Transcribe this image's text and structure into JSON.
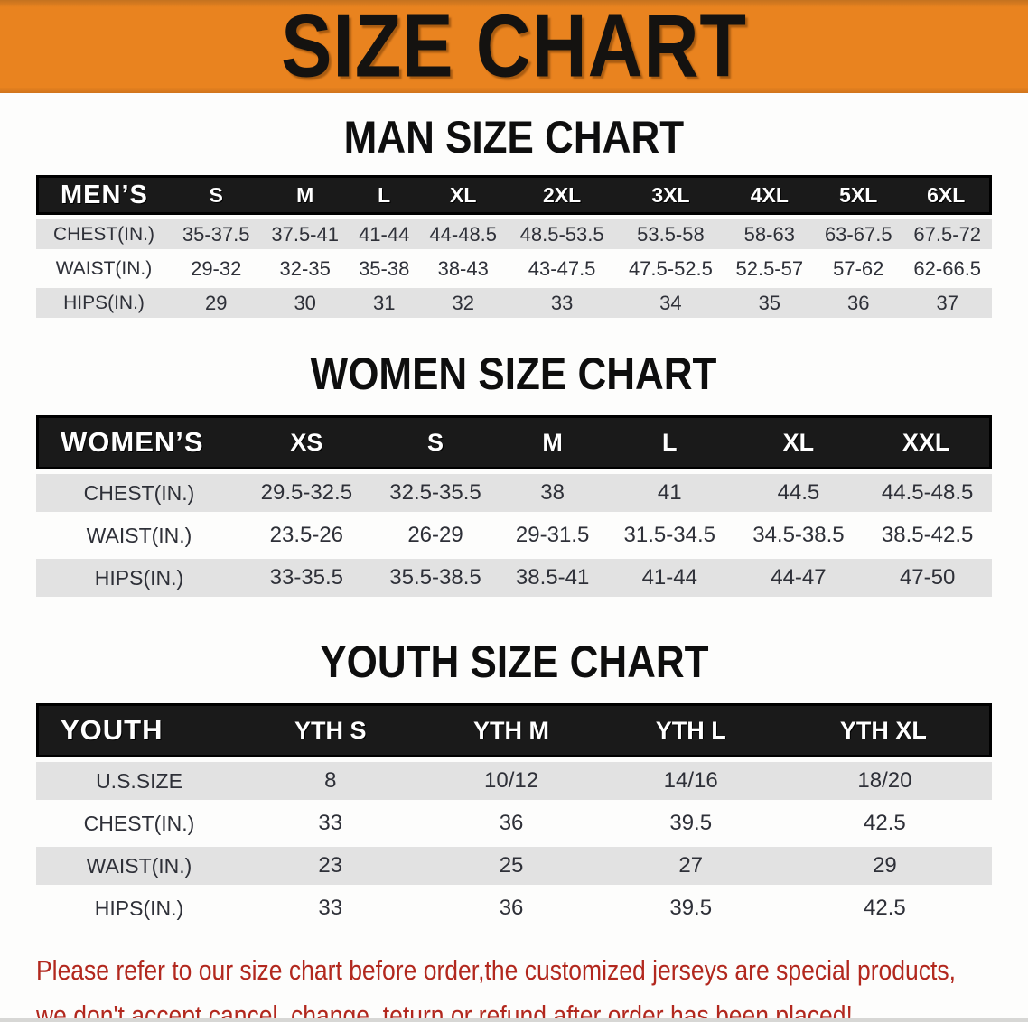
{
  "banner": {
    "title": "SIZE CHART"
  },
  "colors": {
    "banner_orange": "#E9831F",
    "banner_top_edge": "#C4721F",
    "table_header_black": "#1A1A1A",
    "stripe_gray": "#E2E2E2",
    "body_text": "#2E3038",
    "footer_red": "#B2281E"
  },
  "sections": [
    {
      "title": "MAN SIZE CHART",
      "table": {
        "header": [
          "MEN’S",
          "S",
          "M",
          "L",
          "XL",
          "2XL",
          "3XL",
          "4XL",
          "5XL",
          "6XL"
        ],
        "rows": [
          [
            "CHEST(IN.)",
            "35-37.5",
            "37.5-41",
            "41-44",
            "44-48.5",
            "48.5-53.5",
            "53.5-58",
            "58-63",
            "63-67.5",
            "67.5-72"
          ],
          [
            "WAIST(IN.)",
            "29-32",
            "32-35",
            "35-38",
            "38-43",
            "43-47.5",
            "47.5-52.5",
            "52.5-57",
            "57-62",
            "62-66.5"
          ],
          [
            "HIPS(IN.)",
            "29",
            "30",
            "31",
            "32",
            "33",
            "34",
            "35",
            "36",
            "37"
          ]
        ]
      }
    },
    {
      "title": "WOMEN SIZE CHART",
      "table": {
        "header": [
          "WOMEN’S",
          "XS",
          "S",
          "M",
          "L",
          "XL",
          "XXL"
        ],
        "rows": [
          [
            "CHEST(IN.)",
            "29.5-32.5",
            "32.5-35.5",
            "38",
            "41",
            "44.5",
            "44.5-48.5"
          ],
          [
            "WAIST(IN.)",
            "23.5-26",
            "26-29",
            "29-31.5",
            "31.5-34.5",
            "34.5-38.5",
            "38.5-42.5"
          ],
          [
            "HIPS(IN.)",
            "33-35.5",
            "35.5-38.5",
            "38.5-41",
            "41-44",
            "44-47",
            "47-50"
          ]
        ]
      }
    },
    {
      "title": "YOUTH SIZE CHART",
      "table": {
        "header": [
          "YOUTH",
          "YTH S",
          "YTH M",
          "YTH L",
          "YTH XL"
        ],
        "rows": [
          [
            "U.S.SIZE",
            "8",
            "10/12",
            "14/16",
            "18/20"
          ],
          [
            "CHEST(IN.)",
            "33",
            "36",
            "39.5",
            "42.5"
          ],
          [
            "WAIST(IN.)",
            "23",
            "25",
            "27",
            "29"
          ],
          [
            "HIPS(IN.)",
            "33",
            "36",
            "39.5",
            "42.5"
          ]
        ]
      }
    }
  ],
  "footer": {
    "line1": "Please refer to our size chart before order,the customized jerseys are special products,",
    "line2": "we don't accept cancel, change, teturn or refund after order has been placed!"
  }
}
